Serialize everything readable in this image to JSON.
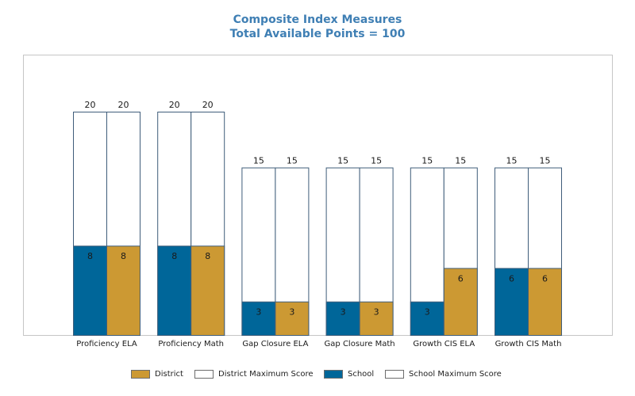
{
  "chart_data": {
    "type": "bar",
    "title": "Composite Index Measures",
    "subtitle": "Total Available Points = 100",
    "categories": [
      "Proficiency ELA",
      "Proficiency Math",
      "Gap Closure ELA",
      "Gap Closure Math",
      "Growth CIS ELA",
      "Growth CIS Math"
    ],
    "series": [
      {
        "name": "School",
        "values": [
          8,
          8,
          3,
          3,
          3,
          6
        ],
        "color": "#006699"
      },
      {
        "name": "School Maximum Score",
        "values": [
          20,
          20,
          15,
          15,
          15,
          15
        ],
        "color": "#ffffff"
      },
      {
        "name": "District",
        "values": [
          8,
          8,
          3,
          3,
          6,
          6
        ],
        "color": "#cc9933"
      },
      {
        "name": "District Maximum Score",
        "values": [
          20,
          20,
          15,
          15,
          15,
          15
        ],
        "color": "#ffffff"
      }
    ],
    "ylim": [
      0,
      25
    ],
    "grid": false,
    "legend_placement": "bottom",
    "legend_order": [
      "District",
      "District Maximum Score",
      "School",
      "School Maximum Score"
    ]
  }
}
